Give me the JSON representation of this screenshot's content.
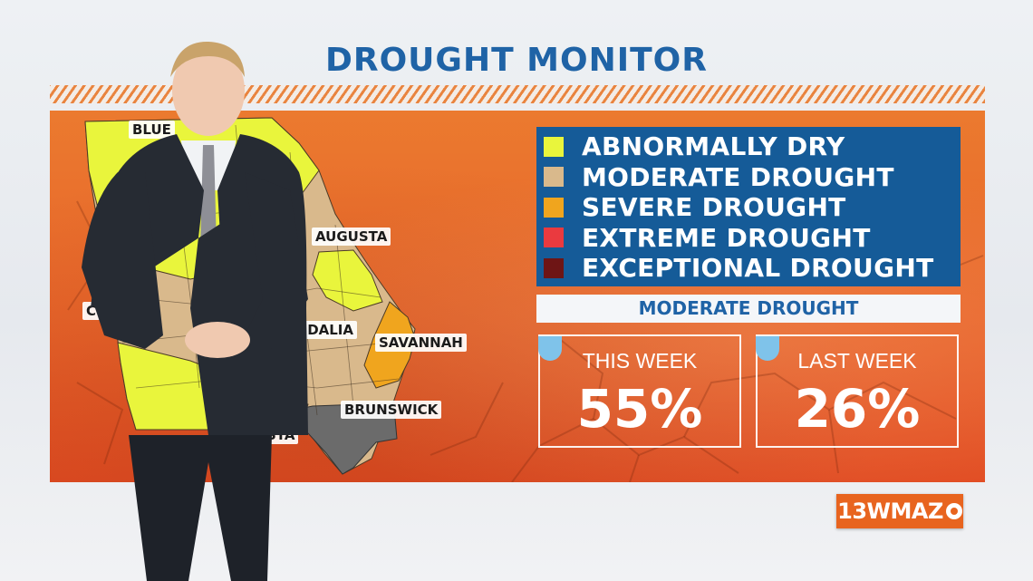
{
  "title": "DROUGHT MONITOR",
  "legend": [
    {
      "label": "ABNORMALLY DRY",
      "color": "#e9f53c"
    },
    {
      "label": "MODERATE DROUGHT",
      "color": "#d9b98c"
    },
    {
      "label": "SEVERE DROUGHT",
      "color": "#f0a51e"
    },
    {
      "label": "EXTREME DROUGHT",
      "color": "#ea3a3f"
    },
    {
      "label": "EXCEPTIONAL DROUGHT",
      "color": "#6e1515"
    }
  ],
  "subtitle": "MODERATE DROUGHT",
  "stats": {
    "this_week": {
      "label": "THIS WEEK",
      "value": "55%"
    },
    "last_week": {
      "label": "LAST WEEK",
      "value": "26%"
    }
  },
  "map": {
    "cities": [
      "BLUE",
      "AUGUSTA",
      "COL",
      "VIDALIA",
      "SAVANNAH",
      "BRUNSWICK",
      "STA"
    ]
  },
  "logo": {
    "text": "13WMAZ",
    "network_icon": "cbs-eye-icon"
  },
  "colors": {
    "title_blue": "#1f63a6",
    "legend_bg": "#155b98",
    "panel_orange": "#e8642a",
    "no_data_gray": "#6b6b6b"
  }
}
